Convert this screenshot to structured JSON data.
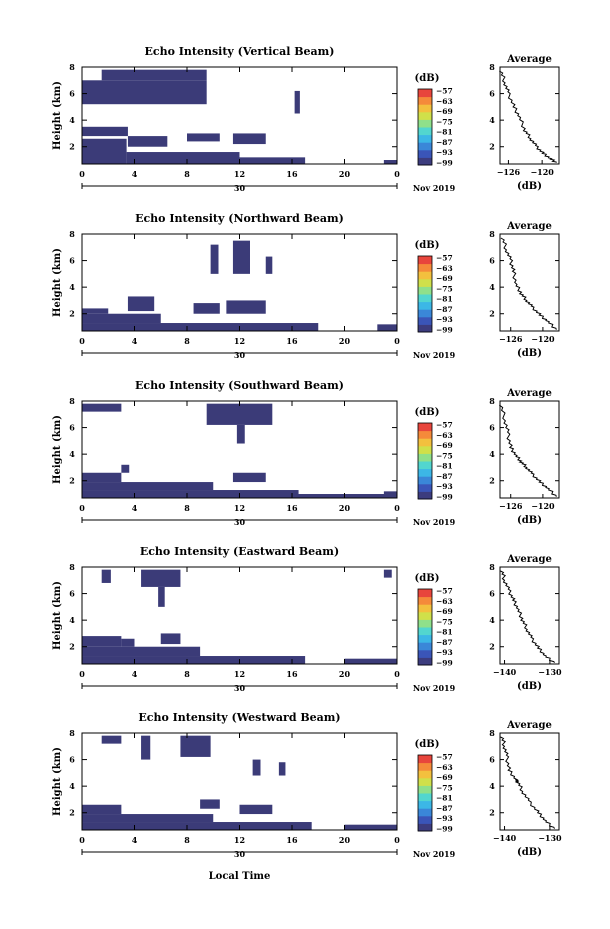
{
  "figure": {
    "date_label": "Nov 2019",
    "xlabel": "Local Time",
    "colorbar_unit": "(dB)",
    "colorbar_ticks": [
      "−57",
      "−63",
      "−69",
      "−75",
      "−81",
      "−87",
      "−93",
      "−99"
    ],
    "colorbar_colors": [
      "#3c3c7e",
      "#3a55b8",
      "#3a87d8",
      "#3cb7e6",
      "#52d6cf",
      "#8fe08a",
      "#d0e04a",
      "#f3c03e",
      "#f58a3a",
      "#e8453c"
    ],
    "echo_color": "#3b3b78"
  },
  "chart_data": [
    {
      "type": "heatmap",
      "title": "Echo Intensity (Vertical Beam)",
      "ylabel": "Height (km)",
      "x_ticks": [
        "0",
        "4",
        "8",
        "12",
        "16",
        "20",
        "0"
      ],
      "x_sub_label": "30",
      "y_ticks": [
        "8",
        "6",
        "4",
        "2"
      ],
      "xlim": [
        0,
        24
      ],
      "ylim": [
        0.7,
        8.0
      ],
      "echo_regions": [
        {
          "x0": 0.0,
          "x1": 3.4,
          "y0": 0.7,
          "y1": 2.6
        },
        {
          "x0": 3.4,
          "x1": 12.0,
          "y0": 0.7,
          "y1": 1.6
        },
        {
          "x0": 12.0,
          "x1": 17.0,
          "y0": 0.7,
          "y1": 1.2
        },
        {
          "x0": 3.5,
          "x1": 6.5,
          "y0": 2.0,
          "y1": 2.8
        },
        {
          "x0": 8.0,
          "x1": 10.5,
          "y0": 2.4,
          "y1": 3.0
        },
        {
          "x0": 11.5,
          "x1": 14.0,
          "y0": 2.2,
          "y1": 3.0
        },
        {
          "x0": 0.0,
          "x1": 3.5,
          "y0": 2.8,
          "y1": 3.5
        },
        {
          "x0": 0.0,
          "x1": 9.5,
          "y0": 5.2,
          "y1": 7.0
        },
        {
          "x0": 1.5,
          "x1": 9.5,
          "y0": 7.0,
          "y1": 7.8
        },
        {
          "x0": 16.2,
          "x1": 16.6,
          "y0": 4.5,
          "y1": 6.2
        },
        {
          "x0": 23.0,
          "x1": 24.0,
          "y0": 0.7,
          "y1": 1.0
        }
      ],
      "avg_profile": {
        "title": "Average",
        "xlabel": "(dB)",
        "x_ticks": [
          "−126",
          "−120"
        ],
        "xlim": [
          -127.5,
          -117
        ],
        "y_ticks": [
          "8",
          "6",
          "4",
          "2"
        ],
        "ylim": [
          0.7,
          8.0
        ],
        "x": [
          -127.3,
          -126.6,
          -126.0,
          -125.0,
          -124.0,
          -123.0,
          -122.0,
          -121.0,
          -119.8,
          -118.5,
          -117.5
        ],
        "y": [
          7.7,
          6.8,
          6.0,
          5.0,
          4.2,
          3.2,
          2.6,
          2.0,
          1.5,
          1.1,
          0.8
        ]
      }
    },
    {
      "type": "heatmap",
      "title": "Echo Intensity (Northward Beam)",
      "ylabel": "Height (km)",
      "x_ticks": [
        "0",
        "4",
        "8",
        "12",
        "16",
        "20",
        "0"
      ],
      "x_sub_label": "30",
      "y_ticks": [
        "8",
        "6",
        "4",
        "2"
      ],
      "xlim": [
        0,
        24
      ],
      "ylim": [
        0.7,
        8.0
      ],
      "echo_regions": [
        {
          "x0": 0.0,
          "x1": 18.0,
          "y0": 0.7,
          "y1": 1.3
        },
        {
          "x0": 0.0,
          "x1": 6.0,
          "y0": 1.3,
          "y1": 2.0
        },
        {
          "x0": 0.0,
          "x1": 2.0,
          "y0": 2.0,
          "y1": 2.4
        },
        {
          "x0": 3.5,
          "x1": 5.5,
          "y0": 2.2,
          "y1": 3.3
        },
        {
          "x0": 8.5,
          "x1": 10.5,
          "y0": 2.0,
          "y1": 2.8
        },
        {
          "x0": 11.0,
          "x1": 14.0,
          "y0": 2.0,
          "y1": 3.0
        },
        {
          "x0": 9.8,
          "x1": 10.4,
          "y0": 5.0,
          "y1": 7.2
        },
        {
          "x0": 11.5,
          "x1": 12.8,
          "y0": 5.0,
          "y1": 7.5
        },
        {
          "x0": 14.0,
          "x1": 14.5,
          "y0": 5.0,
          "y1": 6.3
        },
        {
          "x0": 22.5,
          "x1": 24.0,
          "y0": 0.7,
          "y1": 1.2
        }
      ],
      "avg_profile": {
        "title": "Average",
        "xlabel": "(dB)",
        "x_ticks": [
          "−126",
          "−120"
        ],
        "xlim": [
          -128,
          -117
        ],
        "y_ticks": [
          "8",
          "6",
          "4",
          "2"
        ],
        "ylim": [
          0.7,
          8.0
        ],
        "x": [
          -127.5,
          -126.8,
          -126.0,
          -125.5,
          -125.0,
          -124.0,
          -123.0,
          -122.0,
          -120.5,
          -119.0,
          -117.5
        ],
        "y": [
          7.7,
          6.8,
          6.0,
          5.2,
          4.2,
          3.5,
          3.0,
          2.5,
          1.9,
          1.4,
          0.8
        ]
      }
    },
    {
      "type": "heatmap",
      "title": "Echo Intensity (Southward Beam)",
      "ylabel": "Height (km)",
      "x_ticks": [
        "0",
        "4",
        "8",
        "12",
        "16",
        "20",
        "0"
      ],
      "x_sub_label": "30",
      "y_ticks": [
        "8",
        "6",
        "4",
        "2"
      ],
      "xlim": [
        0,
        24
      ],
      "ylim": [
        0.7,
        8.0
      ],
      "echo_regions": [
        {
          "x0": 0.0,
          "x1": 16.5,
          "y0": 0.7,
          "y1": 1.3
        },
        {
          "x0": 0.0,
          "x1": 10.0,
          "y0": 1.3,
          "y1": 1.9
        },
        {
          "x0": 0.0,
          "x1": 3.0,
          "y0": 1.9,
          "y1": 2.6
        },
        {
          "x0": 3.0,
          "x1": 3.6,
          "y0": 2.6,
          "y1": 3.2
        },
        {
          "x0": 11.5,
          "x1": 14.0,
          "y0": 1.9,
          "y1": 2.6
        },
        {
          "x0": 16.0,
          "x1": 24.0,
          "y0": 0.7,
          "y1": 1.0
        },
        {
          "x0": 0.0,
          "x1": 3.0,
          "y0": 7.2,
          "y1": 7.8
        },
        {
          "x0": 9.5,
          "x1": 14.5,
          "y0": 6.2,
          "y1": 7.8
        },
        {
          "x0": 11.8,
          "x1": 12.4,
          "y0": 4.8,
          "y1": 6.2
        },
        {
          "x0": 23.0,
          "x1": 24.0,
          "y0": 0.7,
          "y1": 1.2
        }
      ],
      "avg_profile": {
        "title": "Average",
        "xlabel": "(dB)",
        "x_ticks": [
          "−126",
          "−120"
        ],
        "xlim": [
          -128,
          -117
        ],
        "y_ticks": [
          "8",
          "6",
          "4",
          "2"
        ],
        "ylim": [
          0.7,
          8.0
        ],
        "x": [
          -127.8,
          -127.0,
          -126.5,
          -126.0,
          -125.0,
          -124.0,
          -123.0,
          -122.0,
          -120.5,
          -119.0,
          -117.5
        ],
        "y": [
          7.7,
          6.5,
          5.5,
          4.5,
          3.9,
          3.4,
          3.0,
          2.5,
          1.9,
          1.4,
          0.8
        ]
      }
    },
    {
      "type": "heatmap",
      "title": "Echo Intensity (Eastward Beam)",
      "ylabel": "Height (km)",
      "x_ticks": [
        "0",
        "4",
        "8",
        "12",
        "16",
        "20",
        "0"
      ],
      "x_sub_label": "30",
      "y_ticks": [
        "8",
        "6",
        "4",
        "2"
      ],
      "xlim": [
        0,
        24
      ],
      "ylim": [
        0.7,
        8.0
      ],
      "echo_regions": [
        {
          "x0": 0.0,
          "x1": 17.0,
          "y0": 0.7,
          "y1": 1.3
        },
        {
          "x0": 0.0,
          "x1": 9.0,
          "y0": 1.3,
          "y1": 2.0
        },
        {
          "x0": 0.0,
          "x1": 3.0,
          "y0": 2.0,
          "y1": 2.8
        },
        {
          "x0": 3.0,
          "x1": 4.0,
          "y0": 2.0,
          "y1": 2.6
        },
        {
          "x0": 6.0,
          "x1": 7.5,
          "y0": 2.2,
          "y1": 3.0
        },
        {
          "x0": 20.0,
          "x1": 24.0,
          "y0": 0.7,
          "y1": 1.1
        },
        {
          "x0": 4.5,
          "x1": 7.5,
          "y0": 6.5,
          "y1": 7.8
        },
        {
          "x0": 1.5,
          "x1": 2.2,
          "y0": 6.8,
          "y1": 7.8
        },
        {
          "x0": 5.8,
          "x1": 6.3,
          "y0": 5.0,
          "y1": 6.5
        },
        {
          "x0": 23.0,
          "x1": 23.6,
          "y0": 7.2,
          "y1": 7.8
        }
      ],
      "avg_profile": {
        "title": "Average",
        "xlabel": "(dB)",
        "x_ticks": [
          "−140",
          "−130"
        ],
        "xlim": [
          -141,
          -128
        ],
        "y_ticks": [
          "8",
          "6",
          "4",
          "2"
        ],
        "ylim": [
          0.7,
          8.0
        ],
        "x": [
          -140.5,
          -140.0,
          -139.0,
          -138.0,
          -137.0,
          -136.0,
          -135.0,
          -134.0,
          -132.5,
          -131.0,
          -129.0
        ],
        "y": [
          7.7,
          7.0,
          6.2,
          5.5,
          4.8,
          4.0,
          3.3,
          2.6,
          1.9,
          1.3,
          0.8
        ]
      }
    },
    {
      "type": "heatmap",
      "title": "Echo Intensity (Westward Beam)",
      "ylabel": "Height (km)",
      "x_ticks": [
        "0",
        "4",
        "8",
        "12",
        "16",
        "20",
        "0"
      ],
      "x_sub_label": "30",
      "y_ticks": [
        "8",
        "6",
        "4",
        "2"
      ],
      "xlim": [
        0,
        24
      ],
      "ylim": [
        0.7,
        8.0
      ],
      "echo_regions": [
        {
          "x0": 0.0,
          "x1": 17.5,
          "y0": 0.7,
          "y1": 1.3
        },
        {
          "x0": 0.0,
          "x1": 10.0,
          "y0": 1.3,
          "y1": 1.9
        },
        {
          "x0": 0.0,
          "x1": 3.0,
          "y0": 1.9,
          "y1": 2.6
        },
        {
          "x0": 9.0,
          "x1": 10.5,
          "y0": 2.3,
          "y1": 3.0
        },
        {
          "x0": 12.0,
          "x1": 14.5,
          "y0": 1.9,
          "y1": 2.6
        },
        {
          "x0": 20.0,
          "x1": 24.0,
          "y0": 0.7,
          "y1": 1.1
        },
        {
          "x0": 1.5,
          "x1": 3.0,
          "y0": 7.2,
          "y1": 7.8
        },
        {
          "x0": 4.5,
          "x1": 5.2,
          "y0": 6.0,
          "y1": 7.8
        },
        {
          "x0": 7.5,
          "x1": 9.8,
          "y0": 6.2,
          "y1": 7.8
        },
        {
          "x0": 13.0,
          "x1": 13.6,
          "y0": 4.8,
          "y1": 6.0
        },
        {
          "x0": 15.0,
          "x1": 15.5,
          "y0": 4.8,
          "y1": 5.8
        }
      ],
      "avg_profile": {
        "title": "Average",
        "xlabel": "(dB)",
        "x_ticks": [
          "−140",
          "−130"
        ],
        "xlim": [
          -141,
          -128
        ],
        "y_ticks": [
          "8",
          "6",
          "4",
          "2"
        ],
        "ylim": [
          0.7,
          8.0
        ],
        "x": [
          -140.5,
          -140.0,
          -139.5,
          -139.0,
          -137.5,
          -137.0,
          -136.0,
          -134.5,
          -132.5,
          -131.0,
          -129.0
        ],
        "y": [
          7.7,
          7.0,
          6.2,
          5.2,
          4.5,
          4.3,
          3.6,
          2.8,
          2.0,
          1.4,
          0.8
        ]
      }
    }
  ]
}
